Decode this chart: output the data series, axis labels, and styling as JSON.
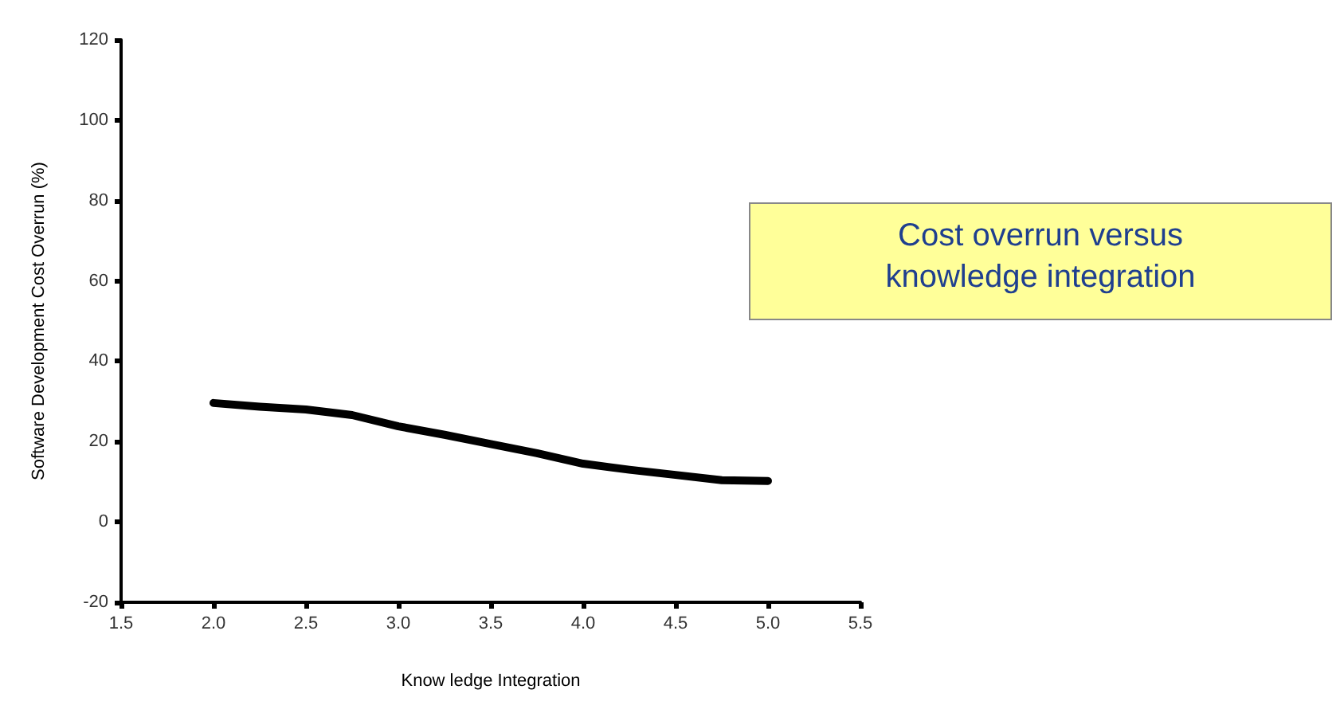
{
  "chart_data": {
    "type": "line",
    "xlabel": "Know ledge Integration",
    "ylabel": "Software Development Cost Overrun (%)",
    "annotations": [
      "Cost overrun versus knowledge integration"
    ],
    "x": [
      2.0,
      2.25,
      2.5,
      2.75,
      3.0,
      3.25,
      3.5,
      3.75,
      4.0,
      4.25,
      4.5,
      4.75,
      5.0
    ],
    "series": [
      {
        "color": "#000000",
        "values": [
          29.6,
          28.7,
          28,
          26.6,
          23.8,
          21.7,
          19.4,
          17.1,
          14.5,
          13,
          11.7,
          10.4,
          10.2
        ]
      }
    ],
    "xlim": [
      1.5,
      5.5
    ],
    "xticks": [
      1.5,
      {
        "value": 2,
        "label": "2.0"
      },
      2.5,
      {
        "value": 3,
        "label": "3.0"
      },
      3.5,
      {
        "value": 4,
        "label": "4.0"
      },
      4.5,
      {
        "value": 5,
        "label": "5.0"
      },
      5.5
    ],
    "ylim": [
      -20,
      120
    ],
    "yticks": [
      -20,
      0,
      20,
      40,
      60,
      80,
      100,
      120
    ],
    "grid": false,
    "marker": "none",
    "line_style": "solid"
  }
}
